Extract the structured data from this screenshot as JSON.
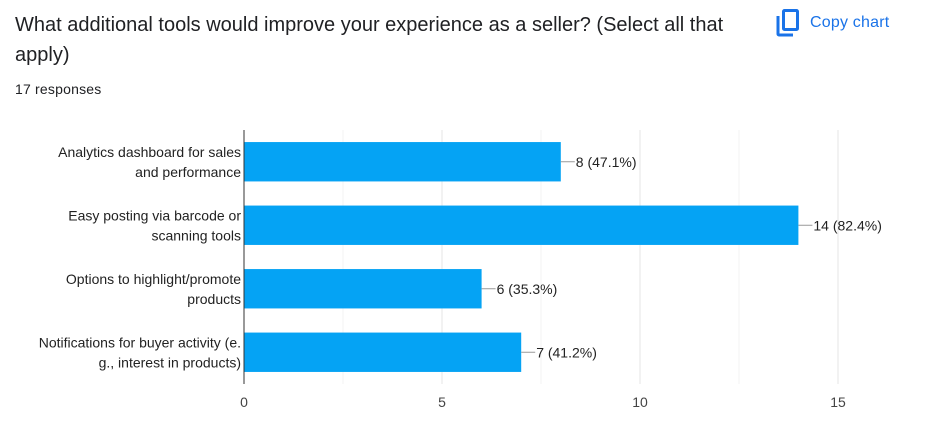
{
  "question": {
    "title": "What additional tools would improve your experience as a seller? (Select all that apply)",
    "responses": "17 responses"
  },
  "toolbar": {
    "copy_label": "Copy chart",
    "copy_icon": "copy-icon"
  },
  "colors": {
    "bar": "#05a3f4",
    "accent": "#1a73e8",
    "grid": "#e6e6e6",
    "axis": "#333333",
    "text": "#222222"
  },
  "chart_data": {
    "type": "bar",
    "orientation": "horizontal",
    "categories": [
      [
        "Analytics dashboard for sales",
        "and performance"
      ],
      [
        "Easy posting via barcode or",
        "scanning tools"
      ],
      [
        "Options to highlight/promote",
        "products"
      ],
      [
        "Notifications for buyer activity (e.",
        "g., interest in products)"
      ]
    ],
    "values": [
      8,
      14,
      6,
      7
    ],
    "data_labels": [
      "8 (47.1%)",
      "14 (82.4%)",
      "6 (35.3%)",
      "7 (41.2%)"
    ],
    "xlim": [
      0,
      15
    ],
    "xticks": [
      0,
      5,
      10,
      15
    ],
    "grid": true
  }
}
